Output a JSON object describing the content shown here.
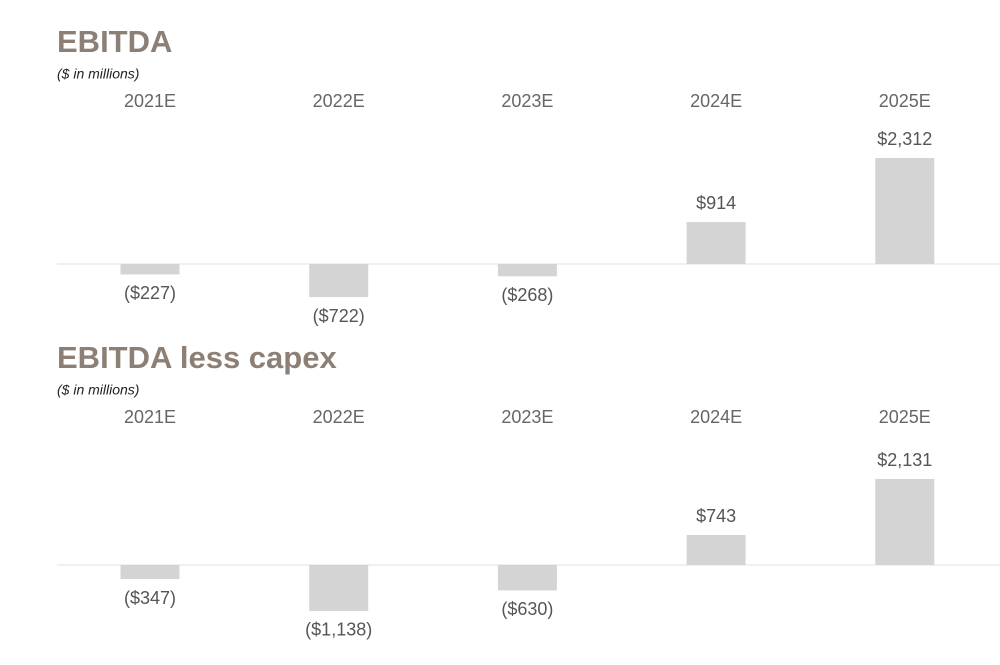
{
  "chart_data": [
    {
      "type": "bar",
      "title": "EBITDA",
      "subtitle": "($ in millions)",
      "categories": [
        "2021E",
        "2022E",
        "2023E",
        "2024E",
        "2025E"
      ],
      "values": [
        -227,
        -722,
        -268,
        914,
        2312
      ],
      "value_labels": [
        "($227)",
        "($722)",
        "($268)",
        "$914",
        "$2,312"
      ],
      "color": "#d4d4d4"
    },
    {
      "type": "bar",
      "title": "EBITDA less capex",
      "subtitle": "($ in millions)",
      "categories": [
        "2021E",
        "2022E",
        "2023E",
        "2024E",
        "2025E"
      ],
      "values": [
        -347,
        -1138,
        -630,
        743,
        2131
      ],
      "value_labels": [
        "($347)",
        "($1,138)",
        "($630)",
        "$743",
        "$2,131"
      ],
      "color": "#d4d4d4"
    }
  ]
}
